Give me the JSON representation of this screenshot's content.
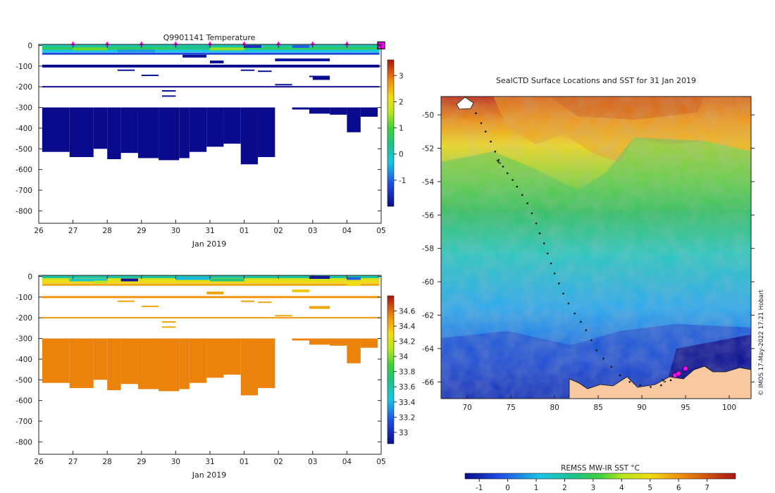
{
  "chart_data": [
    {
      "type": "heatmap",
      "title": "Q9901141  Temperature",
      "xlabel": "Jan 2019",
      "ylabel": "",
      "xlim": [
        26,
        36
      ],
      "ylim": [
        -860,
        5
      ],
      "xticks": [
        {
          "v": 26,
          "l": "26"
        },
        {
          "v": 27,
          "l": "27"
        },
        {
          "v": 28,
          "l": "28"
        },
        {
          "v": 29,
          "l": "29"
        },
        {
          "v": 30,
          "l": "30"
        },
        {
          "v": 31,
          "l": "31"
        },
        {
          "v": 32,
          "l": "01"
        },
        {
          "v": 33,
          "l": "02"
        },
        {
          "v": 34,
          "l": "03"
        },
        {
          "v": 35,
          "l": "04"
        },
        {
          "v": 36,
          "l": "05"
        }
      ],
      "yticks": [
        0,
        -100,
        -200,
        -300,
        -400,
        -500,
        -600,
        -700,
        -800
      ],
      "colorbar": {
        "min": -2,
        "max": 3.6,
        "ticks": [
          3,
          2,
          1,
          0,
          -1
        ]
      },
      "profile_markers": [
        27,
        28,
        29,
        30,
        31,
        32,
        33,
        34,
        35
      ],
      "highlight_marker": 36,
      "rows": [
        {
          "depth": -5,
          "thick": 5,
          "value": 0.1
        },
        {
          "depth": -17,
          "thick": 5,
          "value": 0.7
        },
        {
          "depth": -27,
          "thick": 4,
          "value": -0.3
        },
        {
          "depth": -40,
          "thick": 3,
          "value": -1.2
        },
        {
          "depth": -100,
          "thick": 4,
          "value": -2.0
        },
        {
          "depth": -200,
          "thick": 2,
          "value": -2.0
        }
      ],
      "columns": [
        {
          "x0": 26.1,
          "x1": 26.9,
          "depth": -515
        },
        {
          "x0": 26.9,
          "x1": 27.6,
          "depth": -540
        },
        {
          "x0": 27.6,
          "x1": 28.0,
          "depth": -500
        },
        {
          "x0": 28.0,
          "x1": 28.4,
          "depth": -550
        },
        {
          "x0": 28.4,
          "x1": 28.9,
          "depth": -520
        },
        {
          "x0": 28.9,
          "x1": 29.5,
          "depth": -545
        },
        {
          "x0": 29.5,
          "x1": 30.1,
          "depth": -555
        },
        {
          "x0": 30.1,
          "x1": 30.4,
          "depth": -545
        },
        {
          "x0": 30.4,
          "x1": 30.9,
          "depth": -515
        },
        {
          "x0": 30.9,
          "x1": 31.4,
          "depth": -490
        },
        {
          "x0": 31.4,
          "x1": 31.9,
          "depth": -475
        },
        {
          "x0": 31.9,
          "x1": 32.4,
          "depth": -575
        },
        {
          "x0": 32.4,
          "x1": 32.9,
          "depth": -540
        },
        {
          "x0": 32.9,
          "x1": 33.4,
          "depth": -300
        },
        {
          "x0": 33.4,
          "x1": 33.9,
          "depth": -310
        },
        {
          "x0": 33.9,
          "x1": 34.5,
          "depth": -330
        },
        {
          "x0": 34.5,
          "x1": 35.0,
          "depth": -335
        },
        {
          "x0": 35.0,
          "x1": 35.4,
          "depth": -420
        },
        {
          "x0": 35.4,
          "x1": 35.9,
          "depth": -345
        },
        {
          "x0": 35.9,
          "x1": 36.0,
          "depth": -300
        }
      ]
    },
    {
      "type": "heatmap",
      "title": "",
      "xlabel": "Jan 2019",
      "ylabel": "",
      "xlim": [
        26,
        36
      ],
      "ylim": [
        -860,
        5
      ],
      "xticks": [
        {
          "v": 26,
          "l": "26"
        },
        {
          "v": 27,
          "l": "27"
        },
        {
          "v": 28,
          "l": "28"
        },
        {
          "v": 29,
          "l": "29"
        },
        {
          "v": 30,
          "l": "30"
        },
        {
          "v": 31,
          "l": "31"
        },
        {
          "v": 32,
          "l": "01"
        },
        {
          "v": 33,
          "l": "02"
        },
        {
          "v": 34,
          "l": "03"
        },
        {
          "v": 35,
          "l": "04"
        },
        {
          "v": 36,
          "l": "05"
        }
      ],
      "yticks": [
        0,
        -100,
        -200,
        -300,
        -400,
        -500,
        -600,
        -700,
        -800
      ],
      "colorbar": {
        "min": 32.85,
        "max": 34.8,
        "ticks": [
          34.6,
          34.4,
          34.2,
          34,
          33.8,
          33.6,
          33.4,
          33.2,
          33
        ]
      },
      "rows": [
        {
          "depth": -5,
          "thick": 5,
          "value": 33.6
        },
        {
          "depth": -17,
          "thick": 5,
          "value": 34.2
        },
        {
          "depth": -27,
          "thick": 4,
          "value": 34.3
        },
        {
          "depth": -40,
          "thick": 3,
          "value": 34.45
        },
        {
          "depth": -100,
          "thick": 3,
          "value": 34.5
        },
        {
          "depth": -200,
          "thick": 2,
          "value": 34.5
        }
      ],
      "columns_value": 34.55
    },
    {
      "type": "heatmap",
      "title": "SealCTD Surface Locations and SST for 31 Jan 2019",
      "xlabel": "",
      "ylabel": "",
      "xlim": [
        67,
        102.5
      ],
      "ylim": [
        -67,
        -48.9
      ],
      "xticks": [
        70,
        75,
        80,
        85,
        90,
        95,
        100
      ],
      "yticks": [
        -50,
        -52,
        -54,
        -56,
        -58,
        -60,
        -62,
        -64,
        -66
      ],
      "colorbar": {
        "label": "REMSS MW-IR SST °C",
        "min": -1.5,
        "max": 8,
        "ticks": [
          -1,
          0,
          1,
          2,
          3,
          4,
          5,
          6,
          7
        ]
      },
      "track": [
        [
          71.0,
          -49.9
        ],
        [
          71.6,
          -50.5
        ],
        [
          72.1,
          -51.0
        ],
        [
          72.7,
          -51.6
        ],
        [
          73.2,
          -52.2
        ],
        [
          73.6,
          -52.7
        ],
        [
          74.1,
          -53.1
        ],
        [
          74.6,
          -53.5
        ],
        [
          75.2,
          -53.9
        ],
        [
          75.7,
          -54.3
        ],
        [
          76.3,
          -54.8
        ],
        [
          76.9,
          -55.3
        ],
        [
          77.4,
          -55.9
        ],
        [
          77.9,
          -56.5
        ],
        [
          78.3,
          -57.1
        ],
        [
          78.8,
          -57.7
        ],
        [
          79.2,
          -58.3
        ],
        [
          79.6,
          -58.9
        ],
        [
          80.0,
          -59.5
        ],
        [
          80.5,
          -60.1
        ],
        [
          81.0,
          -60.7
        ],
        [
          81.6,
          -61.3
        ],
        [
          82.3,
          -61.9
        ],
        [
          83.0,
          -62.4
        ],
        [
          83.6,
          -62.9
        ],
        [
          84.2,
          -63.5
        ],
        [
          84.8,
          -64.1
        ],
        [
          85.6,
          -64.6
        ],
        [
          86.5,
          -65.1
        ],
        [
          87.5,
          -65.6
        ],
        [
          88.6,
          -66.0
        ],
        [
          89.8,
          -66.2
        ],
        [
          91.0,
          -66.3
        ],
        [
          92.2,
          -66.2
        ],
        [
          93.3,
          -65.9
        ],
        [
          94.1,
          -65.6
        ]
      ],
      "hot_points": [
        [
          93.8,
          -65.6
        ],
        [
          94.2,
          -65.5
        ],
        [
          95.0,
          -65.2
        ]
      ],
      "white_marks": [
        [
          73.6,
          -52.8
        ],
        [
          92.5,
          -65.9
        ]
      ],
      "credit": "© IMOS 17-May-2022 17:21 Hobart"
    }
  ]
}
